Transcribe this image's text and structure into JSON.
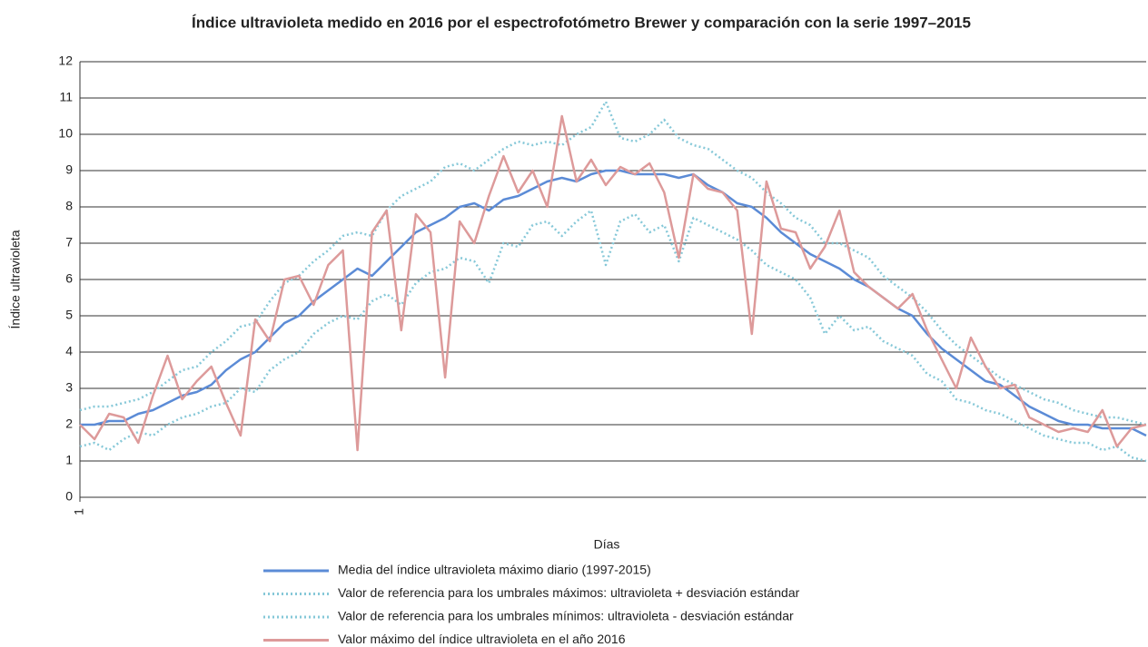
{
  "chart_data": {
    "type": "line",
    "title": "Índice ultravioleta medido en 2016 por el espectrofotómetro Brewer y comparación con la serie 1997–2015",
    "x_label": "Días",
    "y_label": "Índice ultravioleta",
    "x": [
      1,
      6,
      11,
      16,
      21,
      26,
      31,
      36,
      41,
      46,
      51,
      56,
      61,
      66,
      71,
      76,
      81,
      86,
      91,
      96,
      101,
      106,
      111,
      116,
      121,
      126,
      131,
      136,
      141,
      146,
      151,
      156,
      161,
      166,
      171,
      176,
      181,
      186,
      191,
      196,
      201,
      206,
      211,
      216,
      221,
      226,
      231,
      236,
      241,
      246,
      251,
      256,
      261,
      266,
      271,
      276,
      281,
      286,
      291,
      296,
      301,
      306,
      311,
      316,
      321,
      326,
      331,
      336,
      341,
      346,
      351,
      356,
      361,
      366
    ],
    "xlim": [
      1,
      366
    ],
    "xticks": [
      1
    ],
    "ylim": [
      0,
      12
    ],
    "yticks": [
      0,
      1,
      2,
      3,
      4,
      5,
      6,
      7,
      8,
      9,
      10,
      11,
      12
    ],
    "grid": true,
    "series": [
      {
        "name": "Media del índice ultravioleta máximo diario (1997-2015)",
        "color": "#5b8bd6",
        "style": "solid",
        "values": [
          2.0,
          2.0,
          2.1,
          2.1,
          2.3,
          2.4,
          2.6,
          2.8,
          2.9,
          3.1,
          3.5,
          3.8,
          4.0,
          4.4,
          4.8,
          5.0,
          5.4,
          5.7,
          6.0,
          6.3,
          6.1,
          6.5,
          6.9,
          7.3,
          7.5,
          7.7,
          8.0,
          8.1,
          7.9,
          8.2,
          8.3,
          8.5,
          8.7,
          8.8,
          8.7,
          8.9,
          9.0,
          9.0,
          8.9,
          8.9,
          8.9,
          8.8,
          8.9,
          8.6,
          8.4,
          8.1,
          8.0,
          7.7,
          7.3,
          7.0,
          6.7,
          6.5,
          6.3,
          6.0,
          5.8,
          5.5,
          5.2,
          5.0,
          4.5,
          4.1,
          3.8,
          3.5,
          3.2,
          3.1,
          2.8,
          2.5,
          2.3,
          2.1,
          2.0,
          2.0,
          1.9,
          1.9,
          1.9,
          1.7
        ]
      },
      {
        "name": "Valor de referencia para los umbrales máximos: ultravioleta + desviación estándar",
        "color": "#86c8d8",
        "style": "dotted",
        "values": [
          2.4,
          2.5,
          2.5,
          2.6,
          2.7,
          2.9,
          3.2,
          3.5,
          3.6,
          4.0,
          4.3,
          4.7,
          4.8,
          5.4,
          5.9,
          6.1,
          6.5,
          6.8,
          7.2,
          7.3,
          7.2,
          7.9,
          8.3,
          8.5,
          8.7,
          9.1,
          9.2,
          9.0,
          9.3,
          9.6,
          9.8,
          9.7,
          9.8,
          9.7,
          10.0,
          10.2,
          10.9,
          9.9,
          9.8,
          10.0,
          10.4,
          9.9,
          9.7,
          9.6,
          9.3,
          9.0,
          8.8,
          8.4,
          8.1,
          7.7,
          7.5,
          7.0,
          7.0,
          6.8,
          6.6,
          6.1,
          5.8,
          5.5,
          5.1,
          4.6,
          4.2,
          3.9,
          3.6,
          3.3,
          3.1,
          2.9,
          2.7,
          2.6,
          2.4,
          2.3,
          2.2,
          2.2,
          2.1,
          2.0
        ]
      },
      {
        "name": "Valor de referencia para los umbrales mínimos: ultravioleta - desviación estándar",
        "color": "#86c8d8",
        "style": "dotted",
        "values": [
          1.4,
          1.5,
          1.3,
          1.6,
          1.8,
          1.7,
          2.0,
          2.2,
          2.3,
          2.5,
          2.6,
          3.0,
          2.9,
          3.5,
          3.8,
          4.0,
          4.5,
          4.8,
          5.0,
          4.9,
          5.4,
          5.6,
          5.3,
          5.9,
          6.2,
          6.3,
          6.6,
          6.5,
          5.9,
          7.0,
          6.9,
          7.5,
          7.6,
          7.2,
          7.6,
          7.9,
          6.4,
          7.6,
          7.8,
          7.3,
          7.5,
          6.5,
          7.7,
          7.5,
          7.3,
          7.1,
          6.8,
          6.4,
          6.2,
          6.0,
          5.5,
          4.5,
          5.0,
          4.6,
          4.7,
          4.3,
          4.1,
          3.9,
          3.4,
          3.2,
          2.7,
          2.6,
          2.4,
          2.3,
          2.1,
          1.9,
          1.7,
          1.6,
          1.5,
          1.5,
          1.3,
          1.4,
          1.1,
          1.0
        ]
      },
      {
        "name": "Valor máximo del índice ultravioleta en el año 2016",
        "color": "#dd9a9a",
        "style": "solid",
        "values": [
          2.0,
          1.6,
          2.3,
          2.2,
          1.5,
          2.8,
          3.9,
          2.7,
          3.2,
          3.6,
          2.6,
          1.7,
          4.9,
          4.3,
          6.0,
          6.1,
          5.3,
          6.4,
          6.8,
          1.3,
          7.3,
          7.9,
          4.6,
          7.8,
          7.3,
          3.3,
          7.6,
          7.0,
          8.3,
          9.4,
          8.4,
          9.0,
          8.0,
          10.5,
          8.7,
          9.3,
          8.6,
          9.1,
          8.9,
          9.2,
          8.4,
          6.6,
          8.9,
          8.5,
          8.4,
          7.9,
          4.5,
          8.7,
          7.4,
          7.3,
          6.3,
          6.9,
          7.9,
          6.2,
          5.8,
          5.5,
          5.2,
          5.6,
          4.6,
          3.8,
          3.0,
          4.4,
          3.6,
          3.0,
          3.1,
          2.2,
          2.0,
          1.8,
          1.9,
          1.8,
          2.4,
          1.4,
          1.9,
          2.0
        ]
      }
    ]
  }
}
